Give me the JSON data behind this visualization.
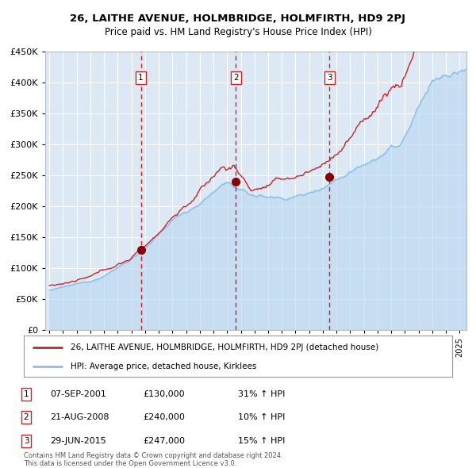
{
  "title": "26, LAITHE AVENUE, HOLMBRIDGE, HOLMFIRTH, HD9 2PJ",
  "subtitle": "Price paid vs. HM Land Registry's House Price Index (HPI)",
  "ylim": [
    0,
    450000
  ],
  "yticks": [
    0,
    50000,
    100000,
    150000,
    200000,
    250000,
    300000,
    350000,
    400000,
    450000
  ],
  "xlim_start": 1994.7,
  "xlim_end": 2025.5,
  "bg_color": "#dce9f5",
  "grid_color": "#ffffff",
  "hpi_color": "#8bbfe8",
  "hpi_fill_color": "#b8d6f0",
  "price_color": "#cc2222",
  "sale_marker_color": "#880000",
  "vline_color": "#cc2222",
  "sale_dates_num": [
    2001.69,
    2008.64,
    2015.49
  ],
  "sale_prices": [
    130000,
    240000,
    247000
  ],
  "sale_labels": [
    "1",
    "2",
    "3"
  ],
  "legend_entries": [
    "26, LAITHE AVENUE, HOLMBRIDGE, HOLMFIRTH, HD9 2PJ (detached house)",
    "HPI: Average price, detached house, Kirklees"
  ],
  "table_rows": [
    [
      "1",
      "07-SEP-2001",
      "£130,000",
      "31% ↑ HPI"
    ],
    [
      "2",
      "21-AUG-2008",
      "£240,000",
      "10% ↑ HPI"
    ],
    [
      "3",
      "29-JUN-2015",
      "£247,000",
      "15% ↑ HPI"
    ]
  ],
  "footer": "Contains HM Land Registry data © Crown copyright and database right 2024.\nThis data is licensed under the Open Government Licence v3.0."
}
